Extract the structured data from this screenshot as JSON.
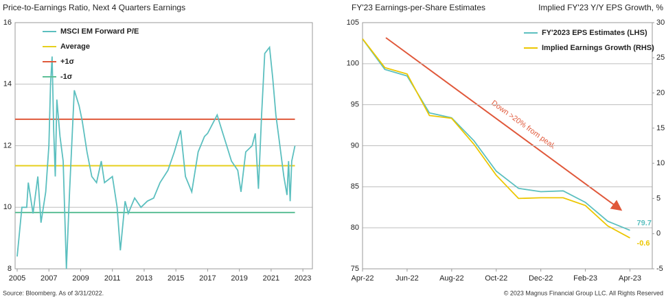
{
  "chart_data": [
    {
      "type": "line",
      "title": "Price-to-Earnings Ratio, Next 4 Quarters Earnings",
      "x": [
        2005.0,
        2005.3,
        2005.6,
        2005.7,
        2006.0,
        2006.3,
        2006.5,
        2006.8,
        2007.0,
        2007.1,
        2007.2,
        2007.3,
        2007.4,
        2007.5,
        2007.7,
        2007.9,
        2008.1,
        2008.3,
        2008.6,
        2008.9,
        2009.1,
        2009.4,
        2009.7,
        2010.0,
        2010.3,
        2010.5,
        2011.0,
        2011.3,
        2011.5,
        2011.8,
        2012.0,
        2012.4,
        2012.8,
        2013.2,
        2013.6,
        2014.0,
        2014.5,
        2014.9,
        2015.3,
        2015.6,
        2016.0,
        2016.4,
        2016.8,
        2017.0,
        2017.4,
        2017.6,
        2017.9,
        2018.2,
        2018.5,
        2018.9,
        2019.1,
        2019.4,
        2019.8,
        2020.0,
        2020.2,
        2020.4,
        2020.6,
        2020.9,
        2021.1,
        2021.3,
        2021.5,
        2021.8,
        2022.0,
        2022.1,
        2022.2,
        2022.3,
        2022.5
      ],
      "series": [
        {
          "name": "MSCI EM Forward P/E",
          "color": "#5bbfbf",
          "values": [
            8.4,
            10.0,
            10.0,
            10.8,
            9.8,
            11.0,
            9.5,
            10.5,
            12.0,
            14.0,
            14.9,
            12.5,
            11.0,
            13.5,
            12.3,
            11.5,
            8.0,
            10.5,
            13.8,
            13.3,
            12.8,
            11.8,
            11.0,
            10.8,
            11.5,
            10.8,
            11.0,
            10.0,
            8.6,
            10.2,
            9.8,
            10.3,
            10.0,
            10.2,
            10.3,
            10.8,
            11.2,
            11.8,
            12.5,
            11.0,
            10.5,
            11.8,
            12.3,
            12.4,
            12.8,
            13.0,
            12.5,
            12.0,
            11.5,
            11.2,
            10.5,
            11.8,
            12.0,
            12.4,
            10.6,
            13.0,
            15.0,
            15.2,
            14.2,
            13.0,
            12.2,
            11.0,
            10.4,
            11.5,
            10.2,
            11.5,
            12.0
          ]
        }
      ],
      "hlines": [
        {
          "name": "Average",
          "color": "#e6cf1c",
          "value": 11.35
        },
        {
          "name": "+1σ",
          "color": "#e0583a",
          "value": 12.86
        },
        {
          "name": "-1σ",
          "color": "#5cbf96",
          "value": 9.83
        }
      ],
      "xlim": [
        2004.87,
        2023.6
      ],
      "xticks": [
        2005,
        2007,
        2009,
        2011,
        2013,
        2015,
        2017,
        2019,
        2021,
        2023
      ],
      "ylim": [
        8,
        16
      ],
      "yticks": [
        8,
        10,
        12,
        14,
        16
      ],
      "grid": true
    },
    {
      "type": "line",
      "title": "FY'23 Earnings-per-Share Estimates",
      "y2_label": "Implied FY'23 Y/Y EPS Growth, %",
      "x": [
        "2022-04",
        "2022-05",
        "2022-06",
        "2022-07",
        "2022-08",
        "2022-09",
        "2022-10",
        "2022-11",
        "2022-12",
        "2023-01",
        "2023-02",
        "2023-03",
        "2023-04"
      ],
      "series": [
        {
          "name": "FY'2023 EPS Estimates (LHS)",
          "color": "#5bbfbf",
          "values": [
            103.0,
            99.3,
            98.5,
            94.0,
            93.4,
            90.6,
            86.9,
            84.8,
            84.4,
            84.5,
            83.1,
            80.8,
            79.7
          ]
        },
        {
          "name": "Implied Earnings Growth (RHS)",
          "color": "#ecc600",
          "axis": "y2",
          "values": [
            27.7,
            23.6,
            22.7,
            16.8,
            16.4,
            12.7,
            8.3,
            5.0,
            5.1,
            5.1,
            4.0,
            1.1,
            -0.6
          ]
        }
      ],
      "label_last": true,
      "annotation": "Down >20% from peak",
      "xlim": [
        "2022-04",
        "2023-05"
      ],
      "xticks": [
        {
          "value": "2022-04",
          "label": "Apr-22"
        },
        {
          "value": "2022-06",
          "label": "Jun-22"
        },
        {
          "value": "2022-08",
          "label": "Aug-22"
        },
        {
          "value": "2022-10",
          "label": "Oct-22"
        },
        {
          "value": "2022-12",
          "label": "Dec-22"
        },
        {
          "value": "2023-02",
          "label": "Feb-23"
        },
        {
          "value": "2023-04",
          "label": "Apr-23"
        }
      ],
      "ylim": [
        75,
        105
      ],
      "yticks": [
        75,
        80,
        85,
        90,
        95,
        100,
        105
      ],
      "y2lim": [
        -5,
        30
      ],
      "y2ticks": [
        -5,
        0,
        5,
        10,
        15,
        20,
        25,
        30
      ],
      "grid": true
    }
  ],
  "footer": {
    "source": "Source: Bloomberg. As of 3/31/2022.",
    "copyright": "© 2023 Magnus Financial Group LLC. All Rights Reserved"
  }
}
